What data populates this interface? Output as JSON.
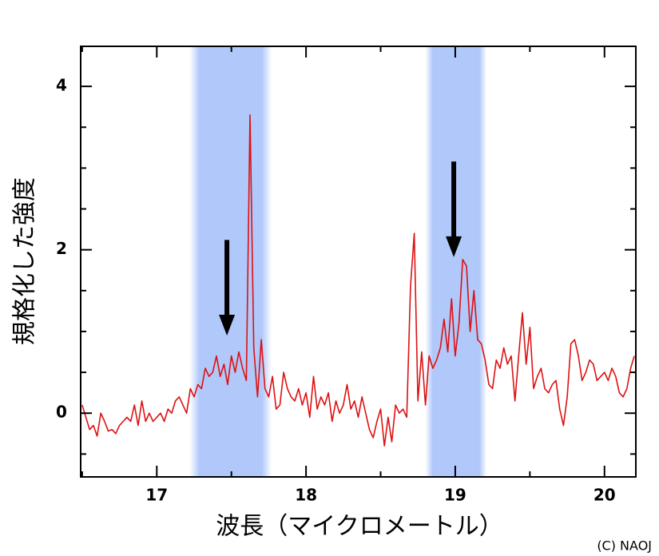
{
  "chart_data": {
    "type": "line",
    "xlabel": "波長（マイクロメートル）",
    "ylabel": "規格化した強度",
    "credit": "(C) NAOJ",
    "xlim": [
      16.49,
      20.21
    ],
    "ylim": [
      -0.78,
      4.49
    ],
    "xticks": [
      17,
      18,
      19,
      20
    ],
    "yticks": [
      0,
      2,
      4
    ],
    "xminor": [
      16.5,
      17.5,
      18.5,
      19.5
    ],
    "yminor": [
      -0.5,
      0.5,
      1,
      1.5,
      2.5,
      3,
      3.5
    ],
    "bands": [
      [
        17.22,
        17.77
      ],
      [
        18.8,
        19.21
      ]
    ],
    "band_color": "#b0c8fa",
    "arrows": [
      {
        "x": 17.47,
        "y_start": 2.12,
        "y_end": 0.95
      },
      {
        "x": 18.99,
        "y_start": 3.08,
        "y_end": 1.91
      }
    ],
    "arrow_color": "#000000",
    "series": [
      {
        "color": "#dd1111",
        "x": [
          16.5,
          16.525,
          16.55,
          16.575,
          16.6,
          16.625,
          16.65,
          16.675,
          16.7,
          16.725,
          16.75,
          16.775,
          16.8,
          16.825,
          16.85,
          16.875,
          16.9,
          16.925,
          16.95,
          16.975,
          17.0,
          17.025,
          17.05,
          17.075,
          17.1,
          17.125,
          17.15,
          17.175,
          17.2,
          17.225,
          17.25,
          17.275,
          17.3,
          17.325,
          17.35,
          17.375,
          17.4,
          17.425,
          17.45,
          17.475,
          17.5,
          17.525,
          17.55,
          17.575,
          17.6,
          17.625,
          17.65,
          17.675,
          17.7,
          17.725,
          17.75,
          17.775,
          17.8,
          17.825,
          17.85,
          17.875,
          17.9,
          17.925,
          17.95,
          17.975,
          18.0,
          18.025,
          18.05,
          18.075,
          18.1,
          18.125,
          18.15,
          18.175,
          18.2,
          18.225,
          18.25,
          18.275,
          18.3,
          18.325,
          18.35,
          18.375,
          18.4,
          18.425,
          18.45,
          18.475,
          18.5,
          18.525,
          18.55,
          18.575,
          18.6,
          18.625,
          18.65,
          18.675,
          18.7,
          18.725,
          18.75,
          18.775,
          18.8,
          18.825,
          18.85,
          18.875,
          18.9,
          18.925,
          18.95,
          18.975,
          19.0,
          19.025,
          19.05,
          19.075,
          19.1,
          19.125,
          19.15,
          19.175,
          19.2,
          19.225,
          19.25,
          19.275,
          19.3,
          19.325,
          19.35,
          19.375,
          19.4,
          19.425,
          19.45,
          19.475,
          19.5,
          19.525,
          19.55,
          19.575,
          19.6,
          19.625,
          19.65,
          19.675,
          19.7,
          19.725,
          19.75,
          19.775,
          19.8,
          19.825,
          19.85,
          19.875,
          19.9,
          19.925,
          19.95,
          19.975,
          20.0,
          20.025,
          20.05,
          20.075,
          20.1,
          20.125,
          20.15,
          20.175,
          20.2
        ],
        "values": [
          0.1,
          -0.05,
          -0.2,
          -0.15,
          -0.28,
          0.0,
          -0.1,
          -0.22,
          -0.2,
          -0.25,
          -0.15,
          -0.1,
          -0.05,
          -0.1,
          0.1,
          -0.15,
          0.15,
          -0.1,
          0.0,
          -0.1,
          -0.05,
          0.0,
          -0.1,
          0.05,
          0.0,
          0.15,
          0.2,
          0.1,
          0.0,
          0.3,
          0.2,
          0.35,
          0.3,
          0.55,
          0.45,
          0.5,
          0.7,
          0.45,
          0.6,
          0.35,
          0.7,
          0.5,
          0.75,
          0.55,
          0.4,
          3.65,
          0.8,
          0.2,
          0.9,
          0.3,
          0.2,
          0.45,
          0.05,
          0.1,
          0.5,
          0.3,
          0.2,
          0.15,
          0.3,
          0.1,
          0.25,
          -0.05,
          0.45,
          0.05,
          0.2,
          0.1,
          0.25,
          -0.1,
          0.15,
          0.0,
          0.1,
          0.35,
          0.05,
          0.15,
          -0.05,
          0.2,
          0.0,
          -0.2,
          -0.3,
          -0.1,
          0.05,
          -0.4,
          -0.05,
          -0.35,
          0.1,
          0.0,
          0.05,
          -0.05,
          1.55,
          2.2,
          0.15,
          0.75,
          0.1,
          0.7,
          0.55,
          0.65,
          0.8,
          1.15,
          0.75,
          1.4,
          0.7,
          1.1,
          1.88,
          1.8,
          1.0,
          1.5,
          0.9,
          0.85,
          0.65,
          0.35,
          0.3,
          0.65,
          0.55,
          0.8,
          0.6,
          0.7,
          0.15,
          0.7,
          1.23,
          0.6,
          1.05,
          0.3,
          0.45,
          0.55,
          0.3,
          0.25,
          0.35,
          0.4,
          0.05,
          -0.15,
          0.2,
          0.85,
          0.9,
          0.7,
          0.4,
          0.5,
          0.65,
          0.6,
          0.4,
          0.45,
          0.5,
          0.4,
          0.55,
          0.45,
          0.25,
          0.2,
          0.3,
          0.55,
          0.7
        ]
      }
    ]
  }
}
